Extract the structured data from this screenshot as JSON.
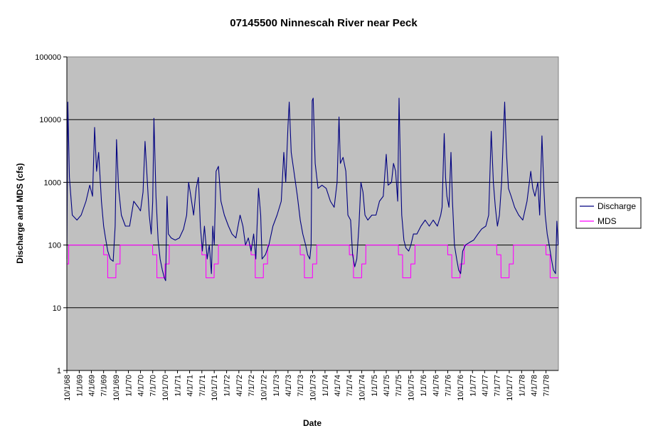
{
  "chart_data": {
    "type": "line",
    "title": "07145500 Ninnescah River near Peck",
    "xlabel": "Date",
    "ylabel": "Discharge and MDS (cfs)",
    "y_scale": "log",
    "ylim": [
      1,
      100000
    ],
    "y_ticks": [
      "1",
      "10",
      "100",
      "1000",
      "10000",
      "100000"
    ],
    "x_range": [
      "1968-10-01",
      "1978-09-30"
    ],
    "x_tick_labels": [
      "10/1/68",
      "1/1/69",
      "4/1/69",
      "7/1/69",
      "10/1/69",
      "1/1/70",
      "4/1/70",
      "7/1/70",
      "10/1/70",
      "1/1/71",
      "4/1/71",
      "7/1/71",
      "10/1/71",
      "1/1/72",
      "4/1/72",
      "7/1/72",
      "10/1/72",
      "1/1/73",
      "4/1/73",
      "7/1/73",
      "10/1/73",
      "1/1/74",
      "4/1/74",
      "7/1/74",
      "10/1/74",
      "1/1/75",
      "4/1/75",
      "7/1/75",
      "10/1/75",
      "1/1/76",
      "4/1/76",
      "7/1/76",
      "10/1/76",
      "1/1/77",
      "4/1/77",
      "7/1/77",
      "10/1/77",
      "1/1/78",
      "4/1/78",
      "7/1/78"
    ],
    "grid": true,
    "background_color": "#c0c0c0",
    "legend_position": "right",
    "series": [
      {
        "name": "Discharge",
        "color": "#000080",
        "points": [
          [
            "1968-10-01",
            60
          ],
          [
            "1968-10-08",
            19000
          ],
          [
            "1968-10-20",
            1200
          ],
          [
            "1968-11-10",
            300
          ],
          [
            "1968-12-15",
            250
          ],
          [
            "1969-01-15",
            300
          ],
          [
            "1969-02-20",
            500
          ],
          [
            "1969-03-20",
            900
          ],
          [
            "1969-04-10",
            600
          ],
          [
            "1969-04-25",
            7500
          ],
          [
            "1969-05-10",
            1500
          ],
          [
            "1969-05-25",
            3000
          ],
          [
            "1969-06-15",
            500
          ],
          [
            "1969-07-01",
            200
          ],
          [
            "1969-07-15",
            130
          ],
          [
            "1969-08-01",
            80
          ],
          [
            "1969-08-20",
            60
          ],
          [
            "1969-09-10",
            55
          ],
          [
            "1969-09-25",
            200
          ],
          [
            "1969-10-05",
            4800
          ],
          [
            "1969-10-20",
            800
          ],
          [
            "1969-11-10",
            300
          ],
          [
            "1969-12-10",
            200
          ],
          [
            "1970-01-10",
            200
          ],
          [
            "1970-02-10",
            500
          ],
          [
            "1970-03-15",
            400
          ],
          [
            "1970-04-01",
            350
          ],
          [
            "1970-04-20",
            700
          ],
          [
            "1970-05-05",
            4500
          ],
          [
            "1970-05-20",
            1200
          ],
          [
            "1970-06-05",
            300
          ],
          [
            "1970-06-20",
            150
          ],
          [
            "1970-07-01",
            500
          ],
          [
            "1970-07-10",
            10500
          ],
          [
            "1970-07-25",
            600
          ],
          [
            "1970-08-10",
            120
          ],
          [
            "1970-08-25",
            60
          ],
          [
            "1970-09-10",
            40
          ],
          [
            "1970-09-25",
            30
          ],
          [
            "1970-10-05",
            27
          ],
          [
            "1970-10-15",
            600
          ],
          [
            "1970-10-25",
            150
          ],
          [
            "1970-11-15",
            130
          ],
          [
            "1970-12-15",
            120
          ],
          [
            "1971-01-15",
            130
          ],
          [
            "1971-02-15",
            180
          ],
          [
            "1971-03-10",
            300
          ],
          [
            "1971-03-25",
            1000
          ],
          [
            "1971-04-10",
            600
          ],
          [
            "1971-05-01",
            300
          ],
          [
            "1971-05-20",
            800
          ],
          [
            "1971-06-05",
            1200
          ],
          [
            "1971-06-20",
            200
          ],
          [
            "1971-07-05",
            80
          ],
          [
            "1971-07-20",
            200
          ],
          [
            "1971-08-10",
            60
          ],
          [
            "1971-08-25",
            100
          ],
          [
            "1971-09-10",
            35
          ],
          [
            "1971-09-20",
            200
          ],
          [
            "1971-10-01",
            100
          ],
          [
            "1971-10-15",
            1500
          ],
          [
            "1971-11-01",
            1800
          ],
          [
            "1971-11-20",
            500
          ],
          [
            "1971-12-15",
            300
          ],
          [
            "1972-01-15",
            200
          ],
          [
            "1972-02-10",
            150
          ],
          [
            "1972-03-10",
            130
          ],
          [
            "1972-04-10",
            300
          ],
          [
            "1972-05-01",
            200
          ],
          [
            "1972-05-20",
            100
          ],
          [
            "1972-06-10",
            130
          ],
          [
            "1972-07-01",
            80
          ],
          [
            "1972-07-20",
            150
          ],
          [
            "1972-08-05",
            60
          ],
          [
            "1972-08-25",
            800
          ],
          [
            "1972-09-10",
            300
          ],
          [
            "1972-09-20",
            60
          ],
          [
            "1972-10-15",
            70
          ],
          [
            "1972-11-10",
            100
          ],
          [
            "1972-12-10",
            200
          ],
          [
            "1973-01-10",
            300
          ],
          [
            "1973-02-10",
            500
          ],
          [
            "1973-03-01",
            3000
          ],
          [
            "1973-03-15",
            1000
          ],
          [
            "1973-04-01",
            8000
          ],
          [
            "1973-04-10",
            19000
          ],
          [
            "1973-04-25",
            3000
          ],
          [
            "1973-05-15",
            1500
          ],
          [
            "1973-06-10",
            600
          ],
          [
            "1973-07-01",
            250
          ],
          [
            "1973-07-20",
            150
          ],
          [
            "1973-08-10",
            100
          ],
          [
            "1973-08-25",
            70
          ],
          [
            "1973-09-10",
            60
          ],
          [
            "1973-09-20",
            100
          ],
          [
            "1973-09-28",
            20000
          ],
          [
            "1973-10-05",
            22000
          ],
          [
            "1973-10-20",
            2000
          ],
          [
            "1973-11-10",
            800
          ],
          [
            "1973-12-10",
            900
          ],
          [
            "1974-01-10",
            800
          ],
          [
            "1974-02-10",
            500
          ],
          [
            "1974-03-10",
            400
          ],
          [
            "1974-04-01",
            1000
          ],
          [
            "1974-04-15",
            11000
          ],
          [
            "1974-04-25",
            2000
          ],
          [
            "1974-05-15",
            2500
          ],
          [
            "1974-06-05",
            1500
          ],
          [
            "1974-06-20",
            300
          ],
          [
            "1974-07-10",
            250
          ],
          [
            "1974-07-25",
            70
          ],
          [
            "1974-08-10",
            45
          ],
          [
            "1974-08-25",
            60
          ],
          [
            "1974-09-10",
            200
          ],
          [
            "1974-09-25",
            1000
          ],
          [
            "1974-10-10",
            700
          ],
          [
            "1974-10-25",
            300
          ],
          [
            "1974-11-15",
            250
          ],
          [
            "1974-12-15",
            300
          ],
          [
            "1975-01-15",
            300
          ],
          [
            "1975-02-10",
            500
          ],
          [
            "1975-03-10",
            600
          ],
          [
            "1975-04-01",
            2800
          ],
          [
            "1975-04-15",
            900
          ],
          [
            "1975-05-10",
            1000
          ],
          [
            "1975-05-25",
            2000
          ],
          [
            "1975-06-10",
            1500
          ],
          [
            "1975-06-25",
            500
          ],
          [
            "1975-07-05",
            22000
          ],
          [
            "1975-07-15",
            2000
          ],
          [
            "1975-07-25",
            300
          ],
          [
            "1975-08-10",
            120
          ],
          [
            "1975-08-25",
            90
          ],
          [
            "1975-09-15",
            80
          ],
          [
            "1975-10-01",
            100
          ],
          [
            "1975-10-20",
            150
          ],
          [
            "1975-11-15",
            150
          ],
          [
            "1975-12-15",
            200
          ],
          [
            "1976-01-15",
            250
          ],
          [
            "1976-02-15",
            200
          ],
          [
            "1976-03-15",
            250
          ],
          [
            "1976-04-15",
            200
          ],
          [
            "1976-05-10",
            300
          ],
          [
            "1976-05-20",
            400
          ],
          [
            "1976-06-05",
            6000
          ],
          [
            "1976-06-15",
            1200
          ],
          [
            "1976-06-25",
            600
          ],
          [
            "1976-07-10",
            400
          ],
          [
            "1976-07-25",
            3000
          ],
          [
            "1976-08-05",
            500
          ],
          [
            "1976-08-20",
            100
          ],
          [
            "1976-09-05",
            60
          ],
          [
            "1976-09-20",
            40
          ],
          [
            "1976-10-05",
            35
          ],
          [
            "1976-10-20",
            80
          ],
          [
            "1976-11-10",
            100
          ],
          [
            "1976-12-10",
            110
          ],
          [
            "1977-01-10",
            120
          ],
          [
            "1977-02-10",
            150
          ],
          [
            "1977-03-10",
            180
          ],
          [
            "1977-04-10",
            200
          ],
          [
            "1977-05-01",
            300
          ],
          [
            "1977-05-20",
            6500
          ],
          [
            "1977-06-05",
            1000
          ],
          [
            "1977-06-20",
            400
          ],
          [
            "1977-07-05",
            200
          ],
          [
            "1977-07-20",
            300
          ],
          [
            "1977-08-05",
            1000
          ],
          [
            "1977-08-20",
            7000
          ],
          [
            "1977-08-28",
            19000
          ],
          [
            "1977-09-10",
            3000
          ],
          [
            "1977-09-25",
            800
          ],
          [
            "1977-10-15",
            600
          ],
          [
            "1977-11-10",
            400
          ],
          [
            "1977-12-10",
            300
          ],
          [
            "1978-01-10",
            250
          ],
          [
            "1978-02-10",
            500
          ],
          [
            "1978-03-10",
            1500
          ],
          [
            "1978-03-25",
            800
          ],
          [
            "1978-04-10",
            600
          ],
          [
            "1978-05-01",
            1000
          ],
          [
            "1978-05-15",
            300
          ],
          [
            "1978-06-01",
            5500
          ],
          [
            "1978-06-15",
            800
          ],
          [
            "1978-06-25",
            300
          ],
          [
            "1978-07-10",
            150
          ],
          [
            "1978-07-25",
            100
          ],
          [
            "1978-08-10",
            60
          ],
          [
            "1978-08-25",
            40
          ],
          [
            "1978-09-10",
            35
          ],
          [
            "1978-09-20",
            240
          ],
          [
            "1978-09-30",
            100
          ]
        ]
      },
      {
        "name": "MDS",
        "color": "#ff00ff",
        "points": [
          [
            "1968-10-01",
            50
          ],
          [
            "1968-10-14",
            50
          ],
          [
            "1968-10-15",
            100
          ],
          [
            "1969-06-30",
            100
          ],
          [
            "1969-07-01",
            70
          ],
          [
            "1969-07-31",
            70
          ],
          [
            "1969-08-01",
            30
          ],
          [
            "1969-09-30",
            30
          ],
          [
            "1969-10-01",
            50
          ],
          [
            "1969-10-31",
            50
          ],
          [
            "1969-11-01",
            100
          ],
          [
            "1970-06-30",
            100
          ],
          [
            "1970-07-01",
            70
          ],
          [
            "1970-07-31",
            70
          ],
          [
            "1970-08-01",
            30
          ],
          [
            "1970-09-30",
            30
          ],
          [
            "1970-10-01",
            50
          ],
          [
            "1970-10-31",
            50
          ],
          [
            "1970-11-01",
            100
          ],
          [
            "1971-06-30",
            100
          ],
          [
            "1971-07-01",
            70
          ],
          [
            "1971-07-31",
            70
          ],
          [
            "1971-08-01",
            30
          ],
          [
            "1971-09-30",
            30
          ],
          [
            "1971-10-01",
            50
          ],
          [
            "1971-10-31",
            50
          ],
          [
            "1971-11-01",
            100
          ],
          [
            "1972-06-30",
            100
          ],
          [
            "1972-07-01",
            70
          ],
          [
            "1972-07-31",
            70
          ],
          [
            "1972-08-01",
            30
          ],
          [
            "1972-09-30",
            30
          ],
          [
            "1972-10-01",
            50
          ],
          [
            "1972-10-31",
            50
          ],
          [
            "1972-11-01",
            100
          ],
          [
            "1973-06-30",
            100
          ],
          [
            "1973-07-01",
            70
          ],
          [
            "1973-07-31",
            70
          ],
          [
            "1973-08-01",
            30
          ],
          [
            "1973-09-30",
            30
          ],
          [
            "1973-10-01",
            50
          ],
          [
            "1973-10-31",
            50
          ],
          [
            "1973-11-01",
            100
          ],
          [
            "1974-06-30",
            100
          ],
          [
            "1974-07-01",
            70
          ],
          [
            "1974-07-31",
            70
          ],
          [
            "1974-08-01",
            30
          ],
          [
            "1974-09-30",
            30
          ],
          [
            "1974-10-01",
            50
          ],
          [
            "1974-10-31",
            50
          ],
          [
            "1974-11-01",
            100
          ],
          [
            "1975-06-30",
            100
          ],
          [
            "1975-07-01",
            70
          ],
          [
            "1975-07-31",
            70
          ],
          [
            "1975-08-01",
            30
          ],
          [
            "1975-09-30",
            30
          ],
          [
            "1975-10-01",
            50
          ],
          [
            "1975-10-31",
            50
          ],
          [
            "1975-11-01",
            100
          ],
          [
            "1976-06-30",
            100
          ],
          [
            "1976-07-01",
            70
          ],
          [
            "1976-07-31",
            70
          ],
          [
            "1976-08-01",
            30
          ],
          [
            "1976-09-30",
            30
          ],
          [
            "1976-10-01",
            50
          ],
          [
            "1976-10-31",
            50
          ],
          [
            "1976-11-01",
            100
          ],
          [
            "1977-06-30",
            100
          ],
          [
            "1977-07-01",
            70
          ],
          [
            "1977-07-31",
            70
          ],
          [
            "1977-08-01",
            30
          ],
          [
            "1977-09-30",
            30
          ],
          [
            "1977-10-01",
            50
          ],
          [
            "1977-10-31",
            50
          ],
          [
            "1977-11-01",
            100
          ],
          [
            "1978-06-30",
            100
          ],
          [
            "1978-07-01",
            70
          ],
          [
            "1978-07-31",
            70
          ],
          [
            "1978-08-01",
            30
          ],
          [
            "1978-09-30",
            30
          ]
        ]
      }
    ]
  }
}
